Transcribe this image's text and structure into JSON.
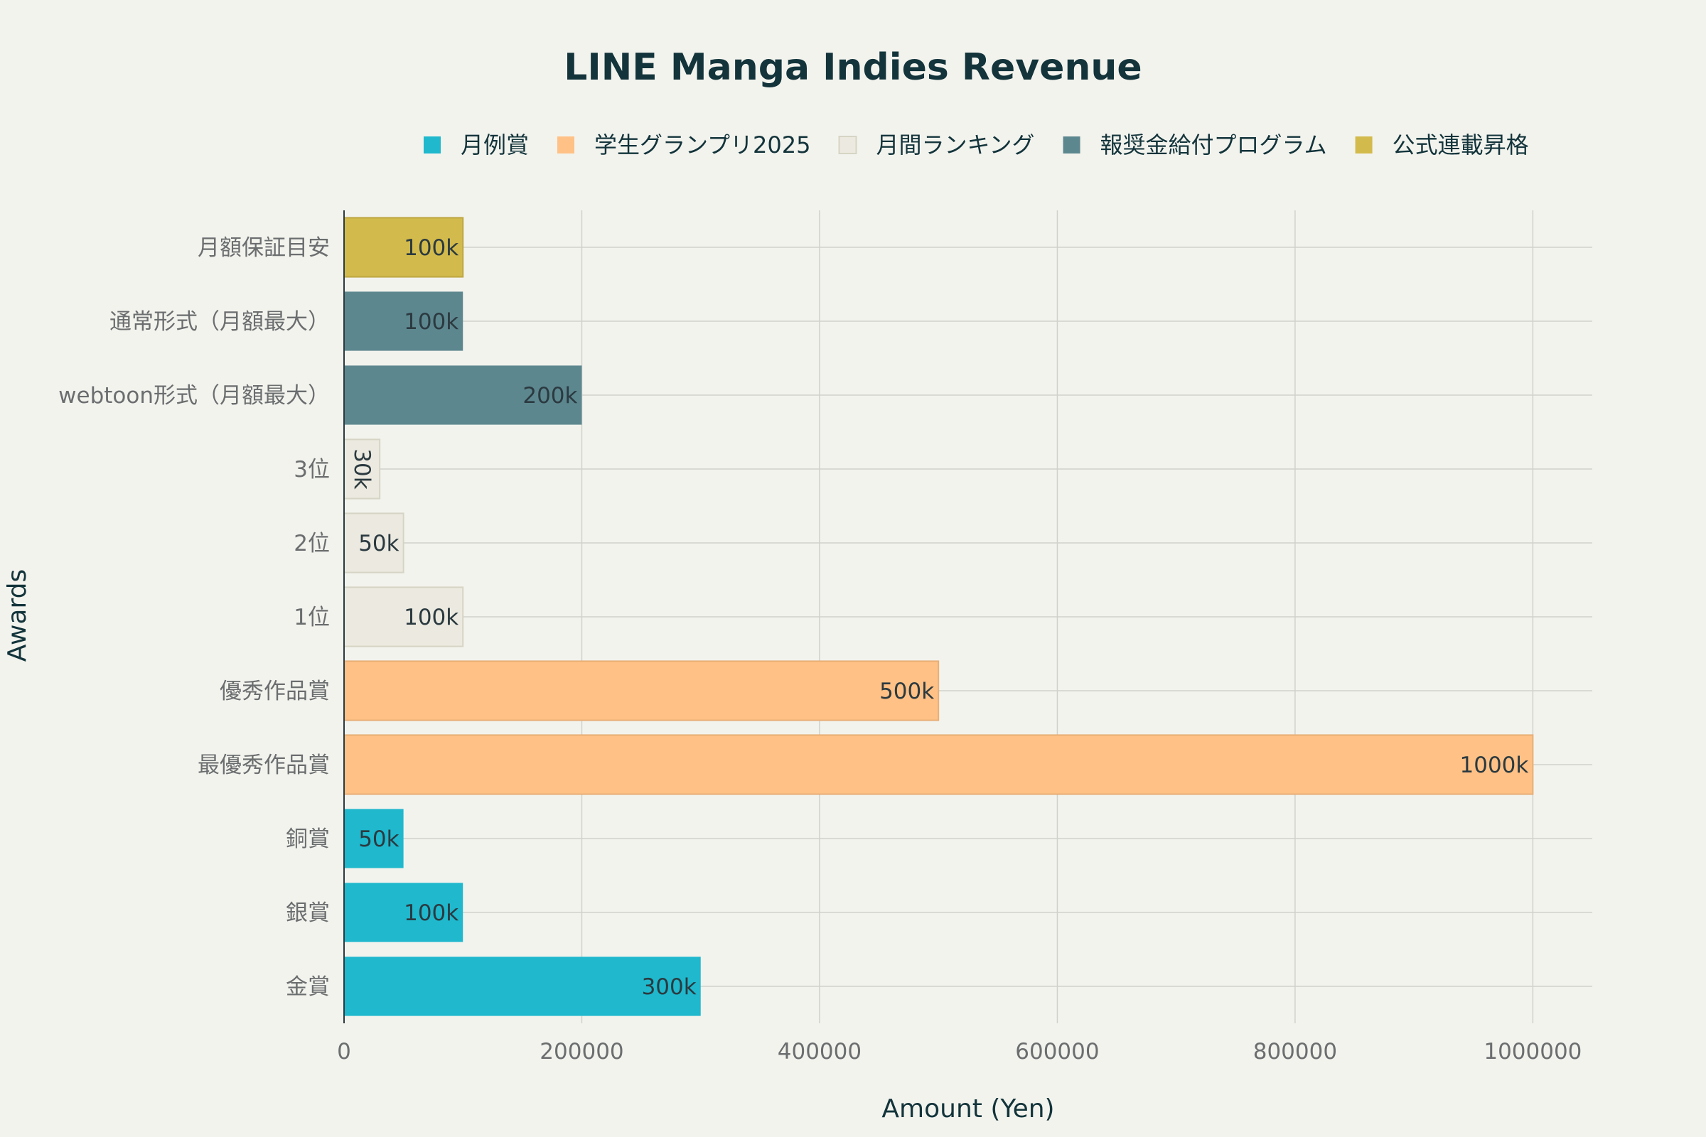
{
  "chart_data": {
    "type": "bar",
    "orientation": "horizontal",
    "title": "LINE Manga Indies Revenue",
    "xlabel": "Amount (Yen)",
    "ylabel": "Awards",
    "xlim": [
      0,
      1050000
    ],
    "xticks": [
      0,
      200000,
      400000,
      600000,
      800000,
      1000000
    ],
    "xtick_labels": [
      "0",
      "200000",
      "400000",
      "600000",
      "800000",
      "1000000"
    ],
    "grid": true,
    "legend_position": "top",
    "series": [
      {
        "name": "月例賞",
        "color": "#1fb8cd",
        "items": [
          {
            "category": "金賞",
            "value": 300000,
            "label": "300k"
          },
          {
            "category": "銀賞",
            "value": 100000,
            "label": "100k"
          },
          {
            "category": "銅賞",
            "value": 50000,
            "label": "50k"
          }
        ]
      },
      {
        "name": "学生グランプリ2025",
        "color": "#ffc185",
        "items": [
          {
            "category": "最優秀作品賞",
            "value": 1000000,
            "label": "1000k"
          },
          {
            "category": "優秀作品賞",
            "value": 500000,
            "label": "500k"
          }
        ]
      },
      {
        "name": "月間ランキング",
        "color": "#eceae0",
        "items": [
          {
            "category": "1位",
            "value": 100000,
            "label": "100k"
          },
          {
            "category": "2位",
            "value": 50000,
            "label": "50k"
          },
          {
            "category": "3位",
            "value": 30000,
            "label": "30k"
          }
        ]
      },
      {
        "name": "報奨金給付プログラム",
        "color": "#5d878f",
        "items": [
          {
            "category": "webtoon形式（月額最大）",
            "value": 200000,
            "label": "200k"
          },
          {
            "category": "通常形式（月額最大）",
            "value": 100000,
            "label": "100k"
          }
        ]
      },
      {
        "name": "公式連載昇格",
        "color": "#d2ba4c",
        "items": [
          {
            "category": "月額保証目安",
            "value": 100000,
            "label": "100k"
          }
        ]
      }
    ]
  }
}
